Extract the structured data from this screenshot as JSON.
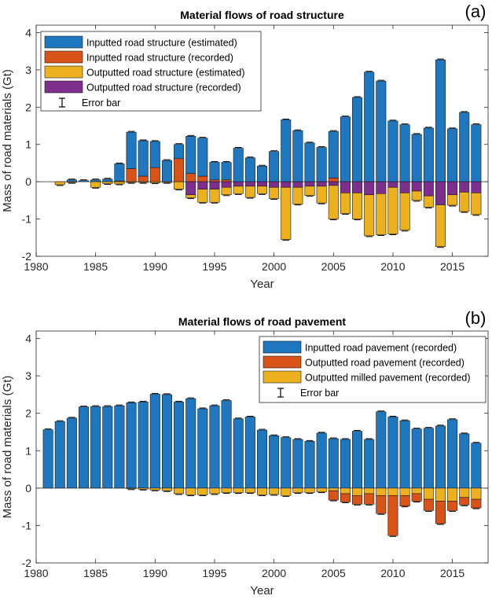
{
  "colors": {
    "blue": "#1F77C0",
    "orange": "#D95319",
    "yellow": "#EDB120",
    "purple": "#7E2F8E"
  },
  "chart_data": [
    {
      "type": "bar",
      "stacking": "diverging-stacked",
      "panel_label": "(a)",
      "title": "Material flows of road structure",
      "xlabel": "Year",
      "ylabel": "Mass of road materials (Gt)",
      "xlim": [
        1980,
        2018
      ],
      "ylim": [
        -2,
        4.2
      ],
      "xticks": [
        1980,
        1985,
        1990,
        1995,
        2000,
        2005,
        2010,
        2015
      ],
      "yticks": [
        -2,
        -1,
        0,
        1,
        2,
        3,
        4
      ],
      "legend_position": "top-left",
      "legend": [
        {
          "label": "Inputted road structure (estimated)",
          "color": "#1F77C0"
        },
        {
          "label": "Inputted road structure (recorded)",
          "color": "#D95319"
        },
        {
          "label": "Outputted road structure (estimated)",
          "color": "#EDB120"
        },
        {
          "label": "Outputted road structure (recorded)",
          "color": "#7E2F8E"
        },
        {
          "label": "Error bar",
          "color": "#000000",
          "kind": "errorbar"
        }
      ],
      "categories": [
        1981,
        1982,
        1983,
        1984,
        1985,
        1986,
        1987,
        1988,
        1989,
        1990,
        1991,
        1992,
        1993,
        1994,
        1995,
        1996,
        1997,
        1998,
        1999,
        2000,
        2001,
        2002,
        2003,
        2004,
        2005,
        2006,
        2007,
        2008,
        2009,
        2010,
        2011,
        2012,
        2013,
        2014,
        2015,
        2016,
        2017
      ],
      "positive_series": [
        {
          "name": "Inputted road structure (recorded)",
          "color": "#D95319",
          "values": [
            0,
            0,
            0,
            0,
            0,
            0,
            0.02,
            0.35,
            0.15,
            0.38,
            0,
            0.62,
            0.22,
            0.15,
            0.05,
            0.05,
            0,
            0,
            0,
            0,
            0,
            0,
            0,
            0,
            0.1,
            0,
            0,
            0,
            0,
            0,
            0,
            0,
            0,
            0,
            0,
            0,
            0
          ]
        },
        {
          "name": "Inputted road structure (estimated)",
          "color": "#1F77C0",
          "values": [
            0,
            0,
            0.05,
            0.03,
            0.05,
            0.07,
            0.46,
            0.98,
            0.95,
            0.7,
            0.57,
            0.38,
            1.0,
            1.02,
            0.47,
            0.47,
            0.9,
            0.64,
            0.42,
            0.81,
            1.66,
            1.37,
            1.04,
            0.92,
            1.25,
            1.74,
            2.26,
            2.94,
            2.7,
            1.63,
            1.53,
            1.27,
            1.44,
            3.27,
            1.42,
            1.86,
            1.53
          ]
        }
      ],
      "negative_series": [
        {
          "name": "Outputted road structure (recorded)",
          "color": "#7E2F8E",
          "values": [
            0,
            0,
            0,
            0,
            0,
            0,
            0,
            0,
            0,
            0,
            0,
            0,
            -0.35,
            -0.2,
            -0.2,
            -0.15,
            -0.12,
            -0.12,
            -0.12,
            -0.15,
            -0.15,
            -0.15,
            -0.12,
            -0.12,
            -0.1,
            -0.3,
            -0.3,
            -0.35,
            -0.32,
            -0.15,
            -0.3,
            -0.25,
            -0.38,
            -0.62,
            -0.35,
            -0.28,
            -0.3
          ]
        },
        {
          "name": "Outputted road structure (estimated)",
          "color": "#EDB120",
          "values": [
            0,
            -0.08,
            -0.02,
            0,
            -0.15,
            -0.05,
            -0.06,
            -0.02,
            -0.02,
            -0.03,
            -0.02,
            -0.2,
            -0.08,
            -0.35,
            -0.35,
            -0.2,
            -0.2,
            -0.3,
            -0.2,
            -0.3,
            -1.4,
            -0.45,
            -0.25,
            -0.45,
            -0.9,
            -0.55,
            -0.7,
            -1.1,
            -1.1,
            -1.25,
            -1.0,
            -0.25,
            -0.3,
            -1.12,
            -0.28,
            -0.52,
            -0.58
          ]
        }
      ]
    },
    {
      "type": "bar",
      "stacking": "diverging-stacked",
      "panel_label": "(b)",
      "title": "Material flows of road pavement",
      "xlabel": "Year",
      "ylabel": "Mass of road materials (Gt)",
      "xlim": [
        1980,
        2018
      ],
      "ylim": [
        -2,
        4.2
      ],
      "xticks": [
        1980,
        1985,
        1990,
        1995,
        2000,
        2005,
        2010,
        2015
      ],
      "yticks": [
        -2,
        -1,
        0,
        1,
        2,
        3,
        4
      ],
      "legend_position": "top-right",
      "legend": [
        {
          "label": "Inputted road pavement (recorded)",
          "color": "#1F77C0"
        },
        {
          "label": "Outputted road pavement (recorded)",
          "color": "#D95319"
        },
        {
          "label": "Outputted milled pavement (recorded)",
          "color": "#EDB120"
        },
        {
          "label": "Error bar",
          "color": "#000000",
          "kind": "errorbar"
        }
      ],
      "categories": [
        1981,
        1982,
        1983,
        1984,
        1985,
        1986,
        1987,
        1988,
        1989,
        1990,
        1991,
        1992,
        1993,
        1994,
        1995,
        1996,
        1997,
        1998,
        1999,
        2000,
        2001,
        2002,
        2003,
        2004,
        2005,
        2006,
        2007,
        2008,
        2009,
        2010,
        2011,
        2012,
        2013,
        2014,
        2015,
        2016,
        2017
      ],
      "positive_series": [
        {
          "name": "Inputted road pavement (recorded)",
          "color": "#1F77C0",
          "values": [
            1.56,
            1.78,
            1.87,
            2.17,
            2.18,
            2.18,
            2.2,
            2.28,
            2.3,
            2.51,
            2.5,
            2.3,
            2.39,
            2.12,
            2.2,
            2.34,
            1.85,
            1.9,
            1.55,
            1.4,
            1.35,
            1.3,
            1.25,
            1.47,
            1.32,
            1.3,
            1.52,
            1.3,
            2.04,
            1.9,
            1.8,
            1.58,
            1.6,
            1.66,
            1.83,
            1.45,
            1.2
          ]
        }
      ],
      "negative_series": [
        {
          "name": "Outputted milled pavement (recorded)",
          "color": "#EDB120",
          "values": [
            0,
            0,
            0,
            0,
            0,
            0,
            0,
            -0.02,
            -0.03,
            -0.05,
            -0.07,
            -0.15,
            -0.18,
            -0.18,
            -0.15,
            -0.12,
            -0.12,
            -0.12,
            -0.18,
            -0.17,
            -0.2,
            -0.12,
            -0.12,
            -0.1,
            -0.07,
            -0.15,
            -0.2,
            -0.15,
            -0.2,
            -0.2,
            -0.2,
            -0.15,
            -0.3,
            -0.35,
            -0.35,
            -0.25,
            -0.3
          ]
        },
        {
          "name": "Outputted road pavement (recorded)",
          "color": "#D95319",
          "values": [
            0,
            0,
            0,
            0,
            0,
            0,
            0,
            0,
            0,
            0,
            0,
            0,
            0,
            0,
            0,
            0,
            0,
            0,
            0,
            0,
            0,
            0,
            0,
            0,
            -0.25,
            -0.22,
            -0.23,
            -0.28,
            -0.48,
            -1.07,
            -0.28,
            -0.2,
            -0.3,
            -0.6,
            -0.25,
            -0.2,
            -0.23
          ]
        }
      ]
    }
  ]
}
